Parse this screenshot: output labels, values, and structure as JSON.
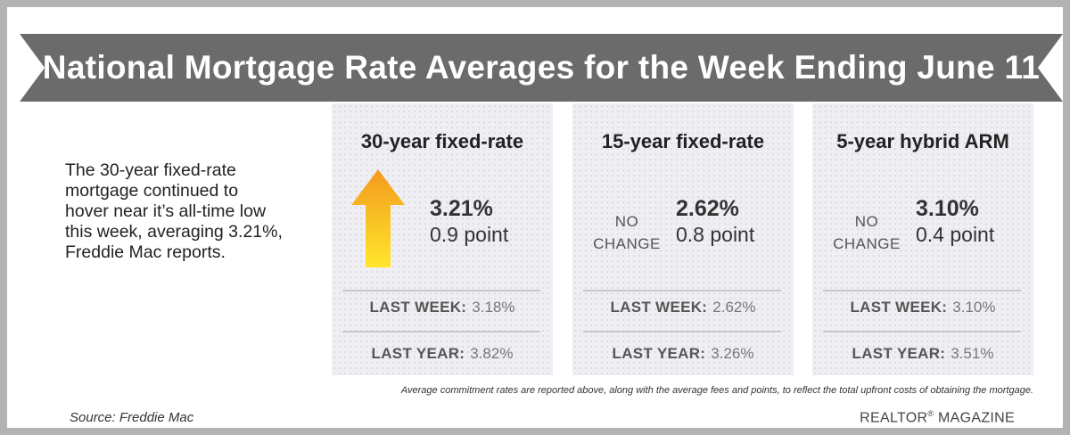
{
  "title": "National Mortgage Rate Averages for the Week Ending June 11",
  "description": "The 30-year fixed-rate mortgage continued to hover near it’s all-time low this week, averaging 3.21%, Freddie Mac reports.",
  "history_labels": {
    "last_week": "LAST WEEK:",
    "last_year": "LAST YEAR:"
  },
  "chart_data": {
    "type": "table",
    "columns": [
      {
        "heading": "30-year fixed-rate",
        "trend": "up",
        "rate": "3.21%",
        "points": "0.9 point",
        "last_week": "3.18%",
        "last_year": "3.82%"
      },
      {
        "heading": "15-year fixed-rate",
        "trend": "no-change",
        "change_line1": "NO",
        "change_line2": "CHANGE",
        "rate": "2.62%",
        "points": "0.8 point",
        "last_week": "2.62%",
        "last_year": "3.26%"
      },
      {
        "heading": "5-year hybrid ARM",
        "trend": "no-change",
        "change_line1": "NO",
        "change_line2": "CHANGE",
        "rate": "3.10%",
        "points": "0.4 point",
        "last_week": "3.10%",
        "last_year": "3.51%"
      }
    ]
  },
  "footnote": "Average commitment rates are reported above, along with the average fees and points, to reflect the total upfront costs of obtaining the mortgage.",
  "source": "Source: Freddie Mac",
  "brand": {
    "name": "REALTOR",
    "mark": "®",
    "suffix": " MAGAZINE"
  },
  "colors": {
    "banner": "#6b6b6b",
    "arrow_top": "#f39a1d",
    "arrow_bottom": "#ffe62b",
    "panel": "#efeff3",
    "frame": "#b3b3b3"
  },
  "icons": {
    "trend_up": "arrow-up-icon"
  }
}
